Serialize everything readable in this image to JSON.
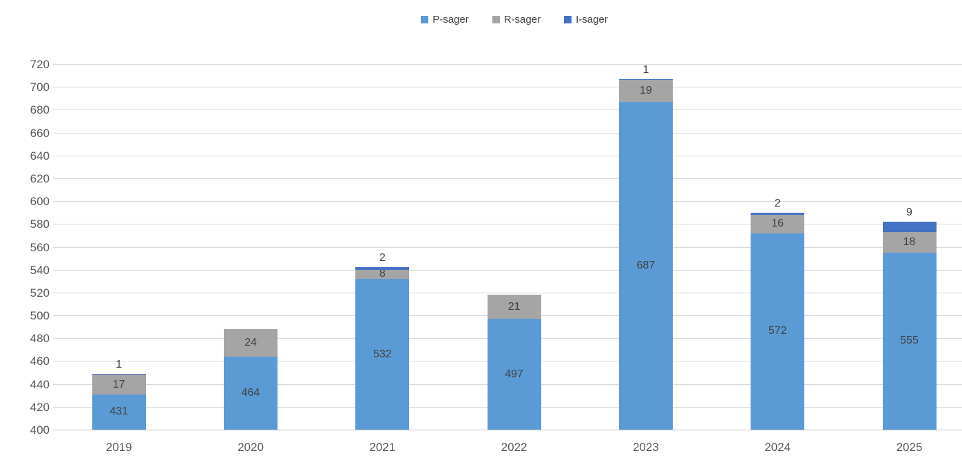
{
  "chart_data": {
    "type": "bar",
    "stacked": true,
    "title": "",
    "categories": [
      "2019",
      "2020",
      "2021",
      "2022",
      "2023",
      "2024",
      "2025"
    ],
    "series": [
      {
        "name": "P-sager",
        "color": "#5B9BD5",
        "values": [
          431,
          464,
          532,
          497,
          687,
          572,
          555
        ]
      },
      {
        "name": "R-sager",
        "color": "#A5A5A5",
        "values": [
          17,
          24,
          8,
          21,
          19,
          16,
          18
        ]
      },
      {
        "name": "I-sager",
        "color": "#4472C4",
        "values": [
          1,
          0,
          2,
          0,
          1,
          2,
          9
        ]
      }
    ],
    "bar_totals": [
      449,
      488,
      542,
      518,
      707,
      590,
      582
    ],
    "xlabel": "",
    "ylabel": "",
    "ylim": [
      400,
      720
    ],
    "ytick_step": 20,
    "ytick_labels": [
      "400",
      "420",
      "440",
      "460",
      "480",
      "500",
      "520",
      "540",
      "560",
      "580",
      "600",
      "620",
      "640",
      "660",
      "680",
      "700",
      "720"
    ],
    "grid": true,
    "legend_position": "top",
    "gridline_color": "#D9D9D9",
    "axis_line_color": "#BFBFBF",
    "axis_label_color": "#595959",
    "data_label_color": "#404040"
  }
}
